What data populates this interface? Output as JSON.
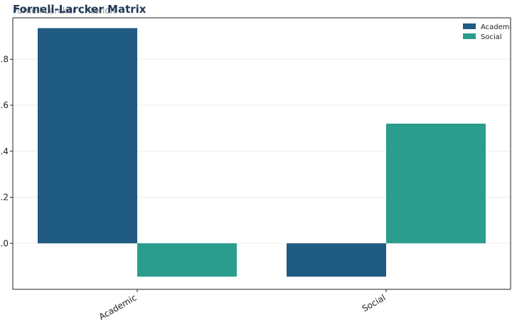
{
  "chart_data": {
    "type": "bar",
    "title": "Fornell-Larcker Matrix",
    "subtitle": "Fornell-Larcker Criterion",
    "xlabel": "",
    "ylabel": "",
    "categories": [
      "Academic",
      "Social"
    ],
    "series": [
      {
        "name": "Academic",
        "color": "#1f5b82",
        "values": [
          0.935,
          -0.145
        ]
      },
      {
        "name": "Social",
        "color": "#2a9d8f",
        "values": [
          -0.145,
          0.52
        ]
      }
    ],
    "ylim": [
      -0.2,
      0.98
    ],
    "yticks": [
      0.0,
      0.2,
      0.4,
      0.6,
      0.8
    ],
    "ytick_labels": [
      ".0",
      ".2",
      ".4",
      ".6",
      ".8"
    ],
    "grid": "horizontal",
    "legend_position": "top-right"
  }
}
